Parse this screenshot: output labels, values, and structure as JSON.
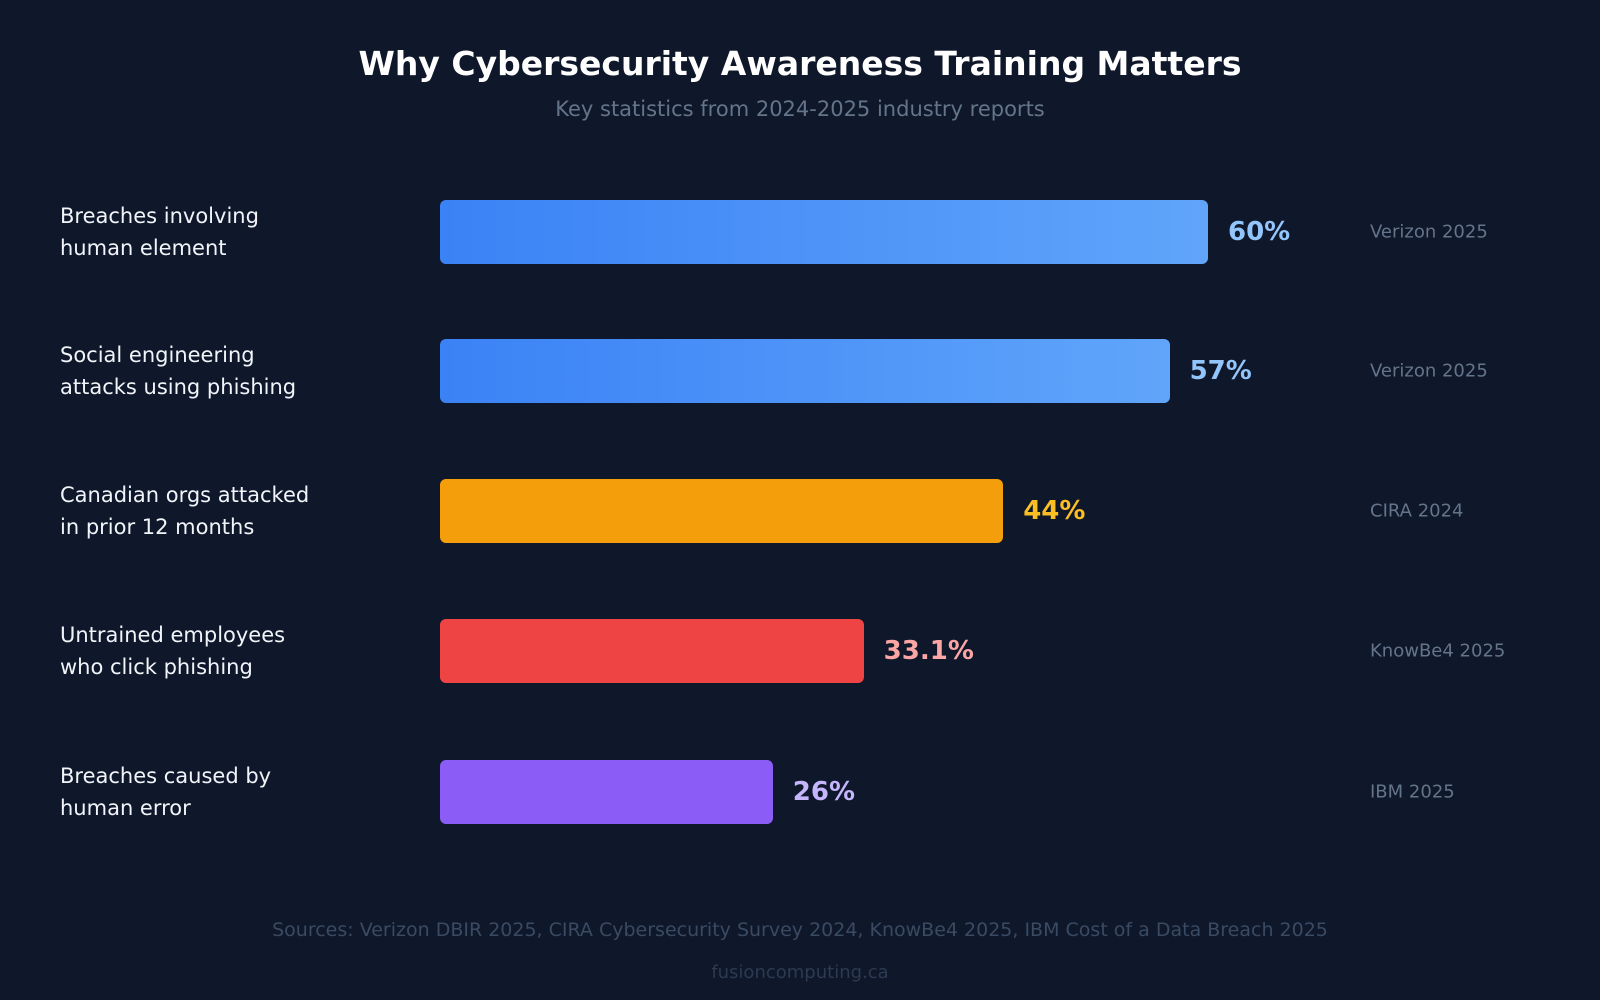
{
  "chart_data": {
    "type": "bar",
    "orientation": "horizontal",
    "title": "Why Cybersecurity Awareness Training Matters",
    "subtitle": "Key statistics from 2024-2025 industry reports",
    "xlim": [
      0,
      100
    ],
    "grid": false,
    "bars": [
      {
        "label_lines": [
          "Breaches involving",
          "human element"
        ],
        "value": 60,
        "value_label": "60%",
        "source": "Verizon 2025",
        "color": "#3b82f6",
        "color_end": "#60a5fa",
        "value_color": "#93c5fd"
      },
      {
        "label_lines": [
          "Social engineering",
          "attacks using phishing"
        ],
        "value": 57,
        "value_label": "57%",
        "source": "Verizon 2025",
        "color": "#3b82f6",
        "color_end": "#60a5fa",
        "value_color": "#93c5fd"
      },
      {
        "label_lines": [
          "Canadian orgs attacked",
          "in prior 12 months"
        ],
        "value": 44,
        "value_label": "44%",
        "source": "CIRA 2024",
        "color": "#f59e0b",
        "value_color": "#fbbf24"
      },
      {
        "label_lines": [
          "Untrained employees",
          "who click phishing"
        ],
        "value": 33.1,
        "value_label": "33.1%",
        "source": "KnowBe4 2025",
        "color": "#ef4444",
        "value_color": "#fca5a5"
      },
      {
        "label_lines": [
          "Breaches caused by",
          "human error"
        ],
        "value": 26,
        "value_label": "26%",
        "source": "IBM 2025",
        "color": "#8b5cf6",
        "value_color": "#c4b5fd"
      }
    ]
  },
  "footer": {
    "sources": "Sources: Verizon DBIR 2025, CIRA Cybersecurity Survey 2024, KnowBe4 2025, IBM Cost of a Data Breach 2025",
    "site": "fusioncomputing.ca"
  }
}
